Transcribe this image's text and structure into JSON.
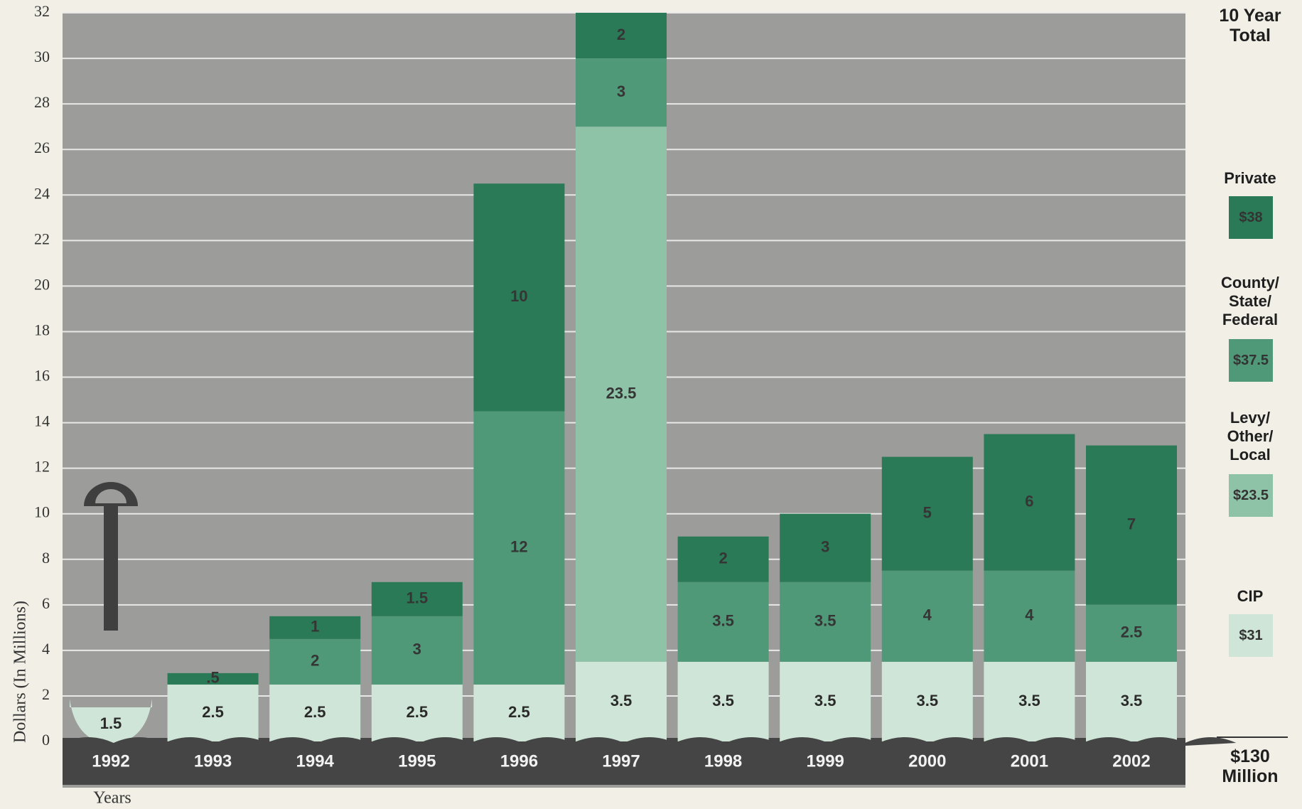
{
  "chart_data": {
    "type": "bar",
    "stacked": true,
    "y_label": "Dollars (In Millions)",
    "x_label": "Years",
    "legend_title": "10 Year Total",
    "grand_total": "$130 Million",
    "categories": [
      "1992",
      "1993",
      "1994",
      "1995",
      "1996",
      "1997",
      "1998",
      "1999",
      "2000",
      "2001",
      "2002"
    ],
    "series": [
      {
        "name": "CIP",
        "total": "$31",
        "color": "#cfe5d7",
        "values": [
          1.5,
          2.5,
          2.5,
          2.5,
          2.5,
          3.5,
          3.5,
          3.5,
          3.5,
          3.5,
          3.5
        ]
      },
      {
        "name": "Levy/ Other/ Local",
        "total": "$23.5",
        "color": "#8fc3a8",
        "values": [
          null,
          null,
          null,
          null,
          null,
          23.5,
          null,
          null,
          null,
          null,
          null
        ]
      },
      {
        "name": "County/ State/ Federal",
        "total": "$37.5",
        "color": "#4f9878",
        "values": [
          null,
          null,
          2,
          3,
          12,
          3,
          3.5,
          3.5,
          4,
          4,
          2.5
        ]
      },
      {
        "name": "Private",
        "total": "$38",
        "color": "#2b7a57",
        "values": [
          null,
          0.5,
          1,
          1.5,
          10,
          2,
          2,
          3,
          5,
          6,
          7
        ],
        "value_labels": [
          null,
          ".5",
          "1",
          "1.5",
          "10",
          "2",
          "2",
          "3",
          "5",
          "6",
          "7"
        ]
      }
    ],
    "ylim": [
      0,
      32
    ],
    "yticks": [
      0,
      2,
      4,
      6,
      8,
      10,
      12,
      14,
      16,
      18,
      20,
      22,
      24,
      26,
      28,
      30,
      32
    ],
    "grid": true
  }
}
